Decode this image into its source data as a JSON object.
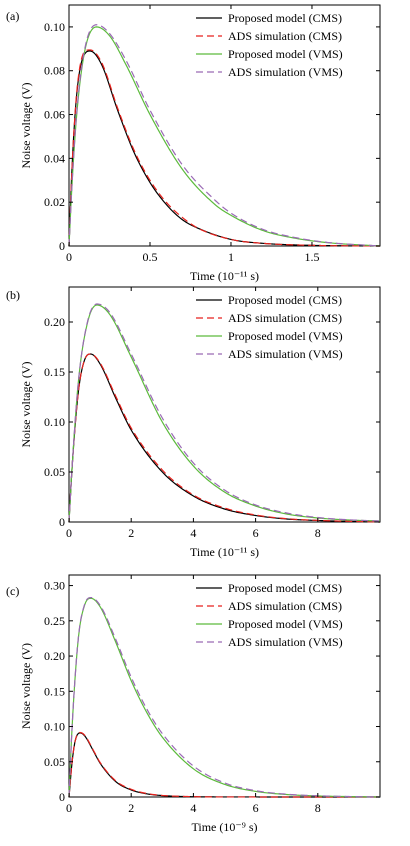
{
  "colors": {
    "cms_model": "#000000",
    "cms_ads": "#e8221d",
    "vms_model": "#5cba3c",
    "vms_ads": "#9a6ab5"
  },
  "chart_data": [
    {
      "type": "line",
      "panel_label": "(a)",
      "xlabel": "Time (10⁻¹¹ s)",
      "ylabel": "Noise voltage (V)",
      "xlim": [
        0,
        1.92
      ],
      "ylim": [
        0,
        0.11
      ],
      "xticks": [
        0,
        0.5,
        1,
        1.5
      ],
      "xtick_labels": [
        "0",
        "0.5",
        "1",
        "1.5"
      ],
      "yticks": [
        0,
        0.02,
        0.04,
        0.06,
        0.08,
        0.1
      ],
      "ytick_labels": [
        "0",
        "0.02",
        "0.04",
        "0.06",
        "0.08",
        "0.10"
      ],
      "grid": false,
      "legend_position": "top-right",
      "series": [
        {
          "name": "Proposed model (CMS)",
          "style": "solid",
          "color_key": "cms_model",
          "peak_x": 0.13,
          "peak_y": 0.089,
          "x": [
            0,
            0.02,
            0.05,
            0.1,
            0.13,
            0.2,
            0.3,
            0.4,
            0.5,
            0.6,
            0.7,
            0.8,
            1.0,
            1.2,
            1.5,
            1.92
          ],
          "y": [
            0,
            0.038,
            0.071,
            0.088,
            0.089,
            0.083,
            0.062,
            0.043,
            0.029,
            0.019,
            0.012,
            0.008,
            0.003,
            0.0012,
            0.0003,
            0
          ]
        },
        {
          "name": "ADS simulation (CMS)",
          "style": "dashed",
          "color_key": "cms_ads",
          "peak_x": 0.13,
          "peak_y": 0.0895,
          "x": [
            0,
            0.02,
            0.05,
            0.1,
            0.13,
            0.2,
            0.3,
            0.4,
            0.5,
            0.6,
            0.7,
            0.8,
            1.0,
            1.2,
            1.5,
            1.92
          ],
          "y": [
            0,
            0.038,
            0.072,
            0.089,
            0.0895,
            0.084,
            0.063,
            0.044,
            0.03,
            0.02,
            0.013,
            0.008,
            0.003,
            0.0012,
            0.0003,
            0
          ]
        },
        {
          "name": "Proposed model (VMS)",
          "style": "solid",
          "color_key": "vms_model",
          "peak_x": 0.17,
          "peak_y": 0.1,
          "x": [
            0,
            0.02,
            0.05,
            0.1,
            0.17,
            0.25,
            0.35,
            0.5,
            0.7,
            0.9,
            1.0,
            1.2,
            1.4,
            1.6,
            1.92
          ],
          "y": [
            0,
            0.03,
            0.062,
            0.09,
            0.1,
            0.096,
            0.083,
            0.06,
            0.035,
            0.019,
            0.014,
            0.007,
            0.0035,
            0.0015,
            0
          ]
        },
        {
          "name": "ADS simulation (VMS)",
          "style": "dashed",
          "color_key": "vms_ads",
          "peak_x": 0.17,
          "peak_y": 0.101,
          "x": [
            0,
            0.02,
            0.05,
            0.1,
            0.17,
            0.25,
            0.35,
            0.5,
            0.7,
            0.9,
            1.0,
            1.2,
            1.4,
            1.6,
            1.92
          ],
          "y": [
            0,
            0.03,
            0.063,
            0.091,
            0.101,
            0.097,
            0.085,
            0.062,
            0.037,
            0.021,
            0.015,
            0.0075,
            0.0038,
            0.0016,
            0
          ]
        }
      ]
    },
    {
      "type": "line",
      "panel_label": "(b)",
      "xlabel": "Time (10⁻¹¹ s)",
      "ylabel": "Noise voltage (V)",
      "xlim": [
        0,
        10
      ],
      "ylim": [
        0,
        0.235
      ],
      "xticks": [
        0,
        2,
        4,
        6,
        8
      ],
      "xtick_labels": [
        "0",
        "2",
        "4",
        "6",
        "8"
      ],
      "yticks": [
        0,
        0.05,
        0.1,
        0.15,
        0.2
      ],
      "ytick_labels": [
        "0",
        "0.05",
        "0.10",
        "0.15",
        "0.20"
      ],
      "grid": false,
      "legend_position": "top-right",
      "series": [
        {
          "name": "Proposed model (CMS)",
          "style": "solid",
          "color_key": "cms_model",
          "peak_x": 0.7,
          "peak_y": 0.168,
          "x": [
            0,
            0.1,
            0.3,
            0.5,
            0.7,
            1.0,
            1.5,
            2,
            3,
            4,
            5,
            6,
            7,
            8,
            10
          ],
          "y": [
            0,
            0.055,
            0.13,
            0.162,
            0.168,
            0.158,
            0.124,
            0.092,
            0.05,
            0.026,
            0.013,
            0.0065,
            0.003,
            0.0015,
            0
          ]
        },
        {
          "name": "ADS simulation (CMS)",
          "style": "dashed",
          "color_key": "cms_ads",
          "peak_x": 0.7,
          "peak_y": 0.168,
          "x": [
            0,
            0.1,
            0.3,
            0.5,
            0.7,
            1.0,
            1.5,
            2,
            3,
            4,
            5,
            6,
            7,
            8,
            10
          ],
          "y": [
            0,
            0.055,
            0.13,
            0.162,
            0.168,
            0.159,
            0.126,
            0.094,
            0.052,
            0.027,
            0.014,
            0.007,
            0.0033,
            0.0016,
            0
          ]
        },
        {
          "name": "Proposed model (VMS)",
          "style": "solid",
          "color_key": "vms_model",
          "peak_x": 0.9,
          "peak_y": 0.217,
          "x": [
            0,
            0.1,
            0.3,
            0.6,
            0.9,
            1.3,
            2,
            3,
            4,
            5,
            6,
            7,
            8,
            9,
            10
          ],
          "y": [
            0,
            0.055,
            0.14,
            0.2,
            0.217,
            0.208,
            0.165,
            0.1,
            0.056,
            0.03,
            0.016,
            0.008,
            0.004,
            0.002,
            0.001
          ]
        },
        {
          "name": "ADS simulation (VMS)",
          "style": "dashed",
          "color_key": "vms_ads",
          "peak_x": 0.9,
          "peak_y": 0.218,
          "x": [
            0,
            0.1,
            0.3,
            0.6,
            0.9,
            1.3,
            2,
            3,
            4,
            5,
            6,
            7,
            8,
            9,
            10
          ],
          "y": [
            0,
            0.055,
            0.14,
            0.201,
            0.218,
            0.21,
            0.168,
            0.104,
            0.059,
            0.032,
            0.017,
            0.009,
            0.0045,
            0.0022,
            0.001
          ]
        }
      ]
    },
    {
      "type": "line",
      "panel_label": "(c)",
      "xlabel": "Time (10⁻⁹ s)",
      "ylabel": "Noise voltage (V)",
      "xlim": [
        0,
        10
      ],
      "ylim": [
        0,
        0.315
      ],
      "xticks": [
        0,
        2,
        4,
        6,
        8
      ],
      "xtick_labels": [
        "0",
        "2",
        "4",
        "6",
        "8"
      ],
      "yticks": [
        0,
        0.05,
        0.1,
        0.15,
        0.2,
        0.25,
        0.3
      ],
      "ytick_labels": [
        "0",
        "0.05",
        "0.10",
        "0.15",
        "0.20",
        "0.25",
        "0.30"
      ],
      "grid": false,
      "legend_position": "top-right",
      "series": [
        {
          "name": "Proposed model (CMS)",
          "style": "solid",
          "color_key": "cms_model",
          "peak_x": 0.35,
          "peak_y": 0.091,
          "x": [
            0,
            0.1,
            0.2,
            0.35,
            0.5,
            0.8,
            1.0,
            1.5,
            2,
            2.5,
            3,
            4,
            5,
            10
          ],
          "y": [
            0,
            0.05,
            0.08,
            0.091,
            0.087,
            0.064,
            0.048,
            0.022,
            0.01,
            0.0045,
            0.002,
            0.0004,
            0.0001,
            0
          ]
        },
        {
          "name": "ADS simulation (CMS)",
          "style": "dashed",
          "color_key": "cms_ads",
          "peak_x": 0.35,
          "peak_y": 0.0915,
          "x": [
            0,
            0.1,
            0.2,
            0.35,
            0.5,
            0.8,
            1.0,
            1.5,
            2,
            2.5,
            3,
            4,
            5,
            10
          ],
          "y": [
            0,
            0.05,
            0.08,
            0.0915,
            0.088,
            0.065,
            0.049,
            0.023,
            0.011,
            0.005,
            0.0022,
            0.0005,
            0.0001,
            0
          ]
        },
        {
          "name": "Proposed model (VMS)",
          "style": "solid",
          "color_key": "vms_model",
          "peak_x": 0.7,
          "peak_y": 0.282,
          "x": [
            0,
            0.1,
            0.3,
            0.5,
            0.7,
            1.0,
            1.5,
            2,
            2.5,
            3,
            4,
            5,
            6,
            7,
            8,
            10
          ],
          "y": [
            0,
            0.1,
            0.225,
            0.272,
            0.282,
            0.27,
            0.22,
            0.165,
            0.12,
            0.085,
            0.04,
            0.018,
            0.008,
            0.0035,
            0.0015,
            0
          ]
        },
        {
          "name": "ADS simulation (VMS)",
          "style": "dashed",
          "color_key": "vms_ads",
          "peak_x": 0.7,
          "peak_y": 0.283,
          "x": [
            0,
            0.1,
            0.3,
            0.5,
            0.7,
            1.0,
            1.5,
            2,
            2.5,
            3,
            4,
            5,
            6,
            7,
            8,
            10
          ],
          "y": [
            0,
            0.1,
            0.226,
            0.273,
            0.283,
            0.272,
            0.224,
            0.17,
            0.125,
            0.09,
            0.044,
            0.02,
            0.009,
            0.004,
            0.0017,
            0
          ]
        }
      ]
    }
  ]
}
